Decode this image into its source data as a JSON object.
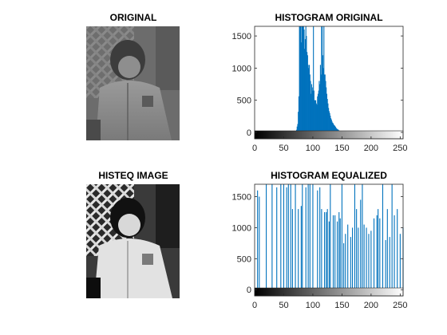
{
  "titles": {
    "original": "ORIGINAL",
    "hist_original": "HISTOGRAM ORIGINAL",
    "histeq_image": "HISTEQ IMAGE",
    "hist_equalized": "HISTOGRAM EQUALIZED"
  },
  "colors": {
    "bar": "#0072BD",
    "axis": "#262626"
  },
  "chart_data": [
    {
      "type": "bar",
      "title": "HISTOGRAM ORIGINAL",
      "xlabel": "",
      "ylabel": "",
      "xlim": [
        0,
        255
      ],
      "ylim": [
        -100,
        1650
      ],
      "xticks": [
        0,
        50,
        100,
        150,
        200,
        250
      ],
      "yticks": [
        0,
        500,
        1000,
        1500
      ],
      "colorbar": "grayscale 0-255",
      "x": [
        72,
        73,
        74,
        75,
        76,
        77,
        78,
        79,
        80,
        81,
        82,
        83,
        84,
        85,
        86,
        87,
        88,
        89,
        90,
        91,
        92,
        93,
        94,
        95,
        96,
        97,
        98,
        99,
        100,
        101,
        102,
        103,
        104,
        105,
        106,
        107,
        108,
        109,
        110,
        111,
        112,
        113,
        114,
        115,
        116,
        117,
        118,
        119,
        120,
        121,
        122,
        123,
        124,
        125,
        126,
        127,
        128,
        129,
        130,
        131,
        132,
        133,
        134,
        135,
        136,
        137,
        138,
        139,
        140,
        141,
        142,
        143,
        144,
        145,
        146,
        147,
        148,
        149,
        150,
        151,
        152,
        153,
        154,
        155,
        156,
        157,
        158,
        160,
        162,
        165,
        170,
        175,
        180,
        185,
        190
      ],
      "values": [
        40,
        90,
        130,
        320,
        560,
        1650,
        1650,
        1650,
        1400,
        1650,
        1650,
        1650,
        1650,
        1600,
        1300,
        1450,
        1650,
        1500,
        1250,
        1200,
        1050,
        1000,
        1050,
        900,
        800,
        600,
        750,
        700,
        650,
        1650,
        650,
        500,
        500,
        500,
        450,
        430,
        560,
        600,
        650,
        800,
        750,
        1050,
        900,
        1650,
        1650,
        1200,
        1000,
        1650,
        900,
        900,
        800,
        700,
        600,
        520,
        450,
        380,
        330,
        300,
        260,
        220,
        200,
        170,
        150,
        140,
        120,
        110,
        100,
        85,
        70,
        60,
        50,
        45,
        40,
        30,
        25,
        20,
        18,
        15,
        12,
        10,
        8,
        7,
        6,
        5,
        4,
        3,
        3,
        2,
        2,
        2,
        1,
        1,
        1,
        1,
        1
      ]
    },
    {
      "type": "bar",
      "title": "HISTOGRAM EQUALIZED",
      "xlabel": "",
      "ylabel": "",
      "xlim": [
        0,
        255
      ],
      "ylim": [
        -100,
        1700
      ],
      "xticks": [
        0,
        50,
        100,
        150,
        200,
        250
      ],
      "yticks": [
        0,
        500,
        1000,
        1500
      ],
      "colorbar": "grayscale 0-255",
      "x": [
        5,
        8,
        20,
        30,
        38,
        45,
        50,
        55,
        58,
        62,
        65,
        70,
        75,
        80,
        82,
        88,
        92,
        95,
        100,
        108,
        112,
        115,
        120,
        123,
        125,
        128,
        130,
        135,
        138,
        142,
        145,
        147,
        150,
        153,
        156,
        160,
        165,
        168,
        172,
        175,
        178,
        182,
        185,
        188,
        192,
        196,
        200,
        205,
        210,
        212,
        215,
        220,
        225,
        228,
        232,
        236,
        240,
        245,
        250,
        255
      ],
      "values": [
        1600,
        1500,
        1700,
        1700,
        1650,
        1700,
        1700,
        1650,
        1700,
        1700,
        1300,
        1700,
        1300,
        1350,
        1700,
        1650,
        1700,
        1700,
        1700,
        1600,
        1650,
        1300,
        1250,
        1250,
        1300,
        1100,
        1700,
        1200,
        1200,
        1100,
        1250,
        1150,
        1700,
        750,
        900,
        1050,
        850,
        1000,
        1700,
        1300,
        1000,
        1450,
        1700,
        1050,
        1000,
        900,
        950,
        1150,
        1200,
        1300,
        1150,
        1700,
        800,
        1300,
        850,
        1700,
        1200,
        1300,
        900,
        1000
      ]
    }
  ]
}
